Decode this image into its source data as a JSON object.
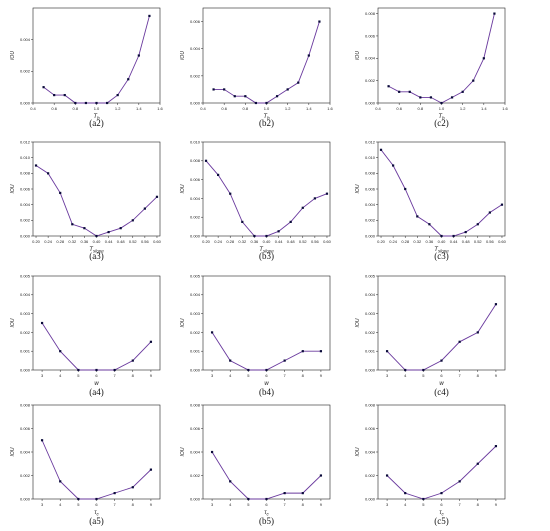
{
  "colors": {
    "line": "#6a3a9e",
    "marker": "#0a0a3a",
    "axis": "#222222"
  },
  "chart_data": [
    {
      "id": "a2",
      "label": "(a2)",
      "type": "line",
      "xlabel": "T_h",
      "xlabel_main": "T",
      "xlabel_sub": "h",
      "ylabel": "IOU",
      "xlim": [
        0.4,
        1.6
      ],
      "ylim": [
        0,
        0.006
      ],
      "xticks": [
        0.4,
        0.6,
        0.8,
        1.0,
        1.2,
        1.4,
        1.6
      ],
      "xtick_labels": [
        "0.4",
        "0.6",
        "0.8",
        "1.0",
        "1.2",
        "1.4",
        "1.6"
      ],
      "yticks": [
        0,
        0.002,
        0.004
      ],
      "ytick_labels": [
        "0.000",
        "0.002",
        "0.004"
      ],
      "x": [
        0.5,
        0.6,
        0.7,
        0.8,
        0.9,
        1.0,
        1.1,
        1.2,
        1.3,
        1.4,
        1.5
      ],
      "y": [
        0.001,
        0.0005,
        0.0005,
        0,
        0,
        0,
        0,
        0.0005,
        0.0015,
        0.003,
        0.0055
      ]
    },
    {
      "id": "b2",
      "label": "(b2)",
      "type": "line",
      "xlabel": "T_h",
      "xlabel_main": "T",
      "xlabel_sub": "h",
      "ylabel": "IOU",
      "xlim": [
        0.4,
        1.6
      ],
      "ylim": [
        0,
        0.007
      ],
      "xticks": [
        0.4,
        0.6,
        0.8,
        1.0,
        1.2,
        1.4,
        1.6
      ],
      "xtick_labels": [
        "0.4",
        "0.6",
        "0.8",
        "1.0",
        "1.2",
        "1.4",
        "1.6"
      ],
      "yticks": [
        0,
        0.002,
        0.004,
        0.006
      ],
      "ytick_labels": [
        "0.000",
        "0.002",
        "0.004",
        "0.006"
      ],
      "x": [
        0.5,
        0.6,
        0.7,
        0.8,
        0.9,
        1.0,
        1.1,
        1.2,
        1.3,
        1.4,
        1.5
      ],
      "y": [
        0.001,
        0.001,
        0.0005,
        0.0005,
        0,
        0,
        0.0005,
        0.001,
        0.0015,
        0.0035,
        0.006
      ]
    },
    {
      "id": "c2",
      "label": "(c2)",
      "type": "line",
      "xlabel": "T_h",
      "xlabel_main": "T",
      "xlabel_sub": "h",
      "ylabel": "IOU",
      "xlim": [
        0.4,
        1.6
      ],
      "ylim": [
        0,
        0.0085
      ],
      "xticks": [
        0.4,
        0.6,
        0.8,
        1.0,
        1.2,
        1.4,
        1.6
      ],
      "xtick_labels": [
        "0.4",
        "0.6",
        "0.8",
        "1.0",
        "1.2",
        "1.4",
        "1.6"
      ],
      "yticks": [
        0,
        0.002,
        0.004,
        0.006,
        0.008
      ],
      "ytick_labels": [
        "0.000",
        "0.002",
        "0.004",
        "0.006",
        "0.008"
      ],
      "x": [
        0.5,
        0.6,
        0.7,
        0.8,
        0.9,
        1.0,
        1.1,
        1.2,
        1.3,
        1.4,
        1.5
      ],
      "y": [
        0.0015,
        0.001,
        0.001,
        0.0005,
        0.0005,
        0,
        0.0005,
        0.001,
        0.002,
        0.004,
        0.008
      ]
    },
    {
      "id": "a3",
      "label": "(a3)",
      "type": "line",
      "xlabel": "T_slope",
      "xlabel_main": "T",
      "xlabel_sub": "slope",
      "ylabel": "IOU",
      "xlim": [
        0.19,
        0.61
      ],
      "ylim": [
        0,
        0.012
      ],
      "xticks": [
        0.2,
        0.24,
        0.28,
        0.32,
        0.36,
        0.4,
        0.44,
        0.48,
        0.52,
        0.56,
        0.6
      ],
      "xtick_labels": [
        "0.20",
        "0.24",
        "0.28",
        "0.32",
        "0.36",
        "0.40",
        "0.44",
        "0.48",
        "0.52",
        "0.56",
        "0.60"
      ],
      "yticks": [
        0,
        0.002,
        0.004,
        0.006,
        0.008,
        0.01,
        0.012
      ],
      "ytick_labels": [
        "0.000",
        "0.002",
        "0.004",
        "0.006",
        "0.008",
        "0.010",
        "0.012"
      ],
      "x": [
        0.2,
        0.24,
        0.28,
        0.32,
        0.36,
        0.4,
        0.44,
        0.48,
        0.52,
        0.56,
        0.6
      ],
      "y": [
        0.009,
        0.008,
        0.0055,
        0.0015,
        0.001,
        0,
        0.0005,
        0.001,
        0.002,
        0.0035,
        0.005
      ]
    },
    {
      "id": "b3",
      "label": "(b3)",
      "type": "line",
      "xlabel": "T_slope",
      "xlabel_main": "T",
      "xlabel_sub": "slope",
      "ylabel": "IOU",
      "xlim": [
        0.19,
        0.61
      ],
      "ylim": [
        0,
        0.01
      ],
      "xticks": [
        0.2,
        0.24,
        0.28,
        0.32,
        0.36,
        0.4,
        0.44,
        0.48,
        0.52,
        0.56,
        0.6
      ],
      "xtick_labels": [
        "0.20",
        "0.24",
        "0.28",
        "0.32",
        "0.36",
        "0.40",
        "0.44",
        "0.48",
        "0.52",
        "0.56",
        "0.60"
      ],
      "yticks": [
        0,
        0.002,
        0.004,
        0.006,
        0.008,
        0.01
      ],
      "ytick_labels": [
        "0.000",
        "0.002",
        "0.004",
        "0.006",
        "0.008",
        "0.010"
      ],
      "x": [
        0.2,
        0.24,
        0.28,
        0.32,
        0.36,
        0.4,
        0.44,
        0.48,
        0.52,
        0.56,
        0.6
      ],
      "y": [
        0.008,
        0.0065,
        0.0045,
        0.0015,
        0,
        0,
        0.0005,
        0.0015,
        0.003,
        0.004,
        0.0045
      ]
    },
    {
      "id": "c3",
      "label": "(c3)",
      "type": "line",
      "xlabel": "T_slope",
      "xlabel_main": "T",
      "xlabel_sub": "slope",
      "ylabel": "IOU",
      "xlim": [
        0.19,
        0.61
      ],
      "ylim": [
        0,
        0.012
      ],
      "xticks": [
        0.2,
        0.24,
        0.28,
        0.32,
        0.36,
        0.4,
        0.44,
        0.48,
        0.52,
        0.56,
        0.6
      ],
      "xtick_labels": [
        "0.20",
        "0.24",
        "0.28",
        "0.32",
        "0.36",
        "0.40",
        "0.44",
        "0.48",
        "0.52",
        "0.56",
        "0.60"
      ],
      "yticks": [
        0,
        0.002,
        0.004,
        0.006,
        0.008,
        0.01,
        0.012
      ],
      "ytick_labels": [
        "0.000",
        "0.002",
        "0.004",
        "0.006",
        "0.008",
        "0.010",
        "0.012"
      ],
      "x": [
        0.2,
        0.24,
        0.28,
        0.32,
        0.36,
        0.4,
        0.44,
        0.48,
        0.52,
        0.56,
        0.6
      ],
      "y": [
        0.011,
        0.009,
        0.006,
        0.0025,
        0.0015,
        0,
        0,
        0.0005,
        0.0015,
        0.003,
        0.004
      ]
    },
    {
      "id": "a4",
      "label": "(a4)",
      "type": "line",
      "xlabel": "w",
      "xlabel_main": "w",
      "xlabel_sub": "",
      "ylabel": "IOU",
      "xlim": [
        2.5,
        9.5
      ],
      "ylim": [
        0,
        0.005
      ],
      "xticks": [
        3,
        4,
        5,
        6,
        7,
        8,
        9
      ],
      "xtick_labels": [
        "3",
        "4",
        "5",
        "6",
        "7",
        "8",
        "9"
      ],
      "yticks": [
        0,
        0.001,
        0.002,
        0.003,
        0.004,
        0.005
      ],
      "ytick_labels": [
        "0.000",
        "0.001",
        "0.002",
        "0.003",
        "0.004",
        "0.005"
      ],
      "x": [
        3,
        4,
        5,
        6,
        7,
        8,
        9
      ],
      "y": [
        0.0025,
        0.001,
        0,
        0,
        0,
        0.0005,
        0.0015
      ]
    },
    {
      "id": "b4",
      "label": "(b4)",
      "type": "line",
      "xlabel": "w",
      "xlabel_main": "w",
      "xlabel_sub": "",
      "ylabel": "IOU",
      "xlim": [
        2.5,
        9.5
      ],
      "ylim": [
        0,
        0.005
      ],
      "xticks": [
        3,
        4,
        5,
        6,
        7,
        8,
        9
      ],
      "xtick_labels": [
        "3",
        "4",
        "5",
        "6",
        "7",
        "8",
        "9"
      ],
      "yticks": [
        0,
        0.001,
        0.002,
        0.003,
        0.004,
        0.005
      ],
      "ytick_labels": [
        "0.000",
        "0.001",
        "0.002",
        "0.003",
        "0.004",
        "0.005"
      ],
      "x": [
        3,
        4,
        5,
        6,
        7,
        8,
        9
      ],
      "y": [
        0.002,
        0.0005,
        0,
        0,
        0.0005,
        0.001,
        0.001
      ]
    },
    {
      "id": "c4",
      "label": "(c4)",
      "type": "line",
      "xlabel": "w",
      "xlabel_main": "w",
      "xlabel_sub": "",
      "ylabel": "IOU",
      "xlim": [
        2.5,
        9.5
      ],
      "ylim": [
        0,
        0.005
      ],
      "xticks": [
        3,
        4,
        5,
        6,
        7,
        8,
        9
      ],
      "xtick_labels": [
        "3",
        "4",
        "5",
        "6",
        "7",
        "8",
        "9"
      ],
      "yticks": [
        0,
        0.001,
        0.002,
        0.003,
        0.004,
        0.005
      ],
      "ytick_labels": [
        "0.000",
        "0.001",
        "0.002",
        "0.003",
        "0.004",
        "0.005"
      ],
      "x": [
        3,
        4,
        5,
        6,
        7,
        8,
        9
      ],
      "y": [
        0.001,
        0,
        0,
        0.0005,
        0.0015,
        0.002,
        0.0035
      ]
    },
    {
      "id": "a5",
      "label": "(a5)",
      "type": "line",
      "xlabel": "τ_c",
      "xlabel_main": "τ",
      "xlabel_sub": "c",
      "ylabel": "IOU",
      "xlim": [
        2.5,
        9.5
      ],
      "ylim": [
        0,
        0.008
      ],
      "xticks": [
        3,
        4,
        5,
        6,
        7,
        8,
        9
      ],
      "xtick_labels": [
        "3",
        "4",
        "5",
        "6",
        "7",
        "8",
        "9"
      ],
      "yticks": [
        0,
        0.002,
        0.004,
        0.006,
        0.008
      ],
      "ytick_labels": [
        "0.000",
        "0.002",
        "0.004",
        "0.006",
        "0.008"
      ],
      "x": [
        3,
        4,
        5,
        6,
        7,
        8,
        9
      ],
      "y": [
        0.005,
        0.0015,
        0,
        0,
        0.0005,
        0.001,
        0.0025
      ]
    },
    {
      "id": "b5",
      "label": "(b5)",
      "type": "line",
      "xlabel": "τ_c",
      "xlabel_main": "τ",
      "xlabel_sub": "c",
      "ylabel": "IOU",
      "xlim": [
        2.5,
        9.5
      ],
      "ylim": [
        0,
        0.008
      ],
      "xticks": [
        3,
        4,
        5,
        6,
        7,
        8,
        9
      ],
      "xtick_labels": [
        "3",
        "4",
        "5",
        "6",
        "7",
        "8",
        "9"
      ],
      "yticks": [
        0,
        0.002,
        0.004,
        0.006,
        0.008
      ],
      "ytick_labels": [
        "0.000",
        "0.002",
        "0.004",
        "0.006",
        "0.008"
      ],
      "x": [
        3,
        4,
        5,
        6,
        7,
        8,
        9
      ],
      "y": [
        0.004,
        0.0015,
        0,
        0,
        0.0005,
        0.0005,
        0.002
      ]
    },
    {
      "id": "c5",
      "label": "(c5)",
      "type": "line",
      "xlabel": "τ_c",
      "xlabel_main": "τ",
      "xlabel_sub": "c",
      "ylabel": "IOU",
      "xlim": [
        2.5,
        9.5
      ],
      "ylim": [
        0,
        0.008
      ],
      "xticks": [
        3,
        4,
        5,
        6,
        7,
        8,
        9
      ],
      "xtick_labels": [
        "3",
        "4",
        "5",
        "6",
        "7",
        "8",
        "9"
      ],
      "yticks": [
        0,
        0.002,
        0.004,
        0.006,
        0.008
      ],
      "ytick_labels": [
        "0.000",
        "0.002",
        "0.004",
        "0.006",
        "0.008"
      ],
      "x": [
        3,
        4,
        5,
        6,
        7,
        8,
        9
      ],
      "y": [
        0.002,
        0.0005,
        0,
        0.0005,
        0.0015,
        0.003,
        0.0045
      ]
    }
  ]
}
